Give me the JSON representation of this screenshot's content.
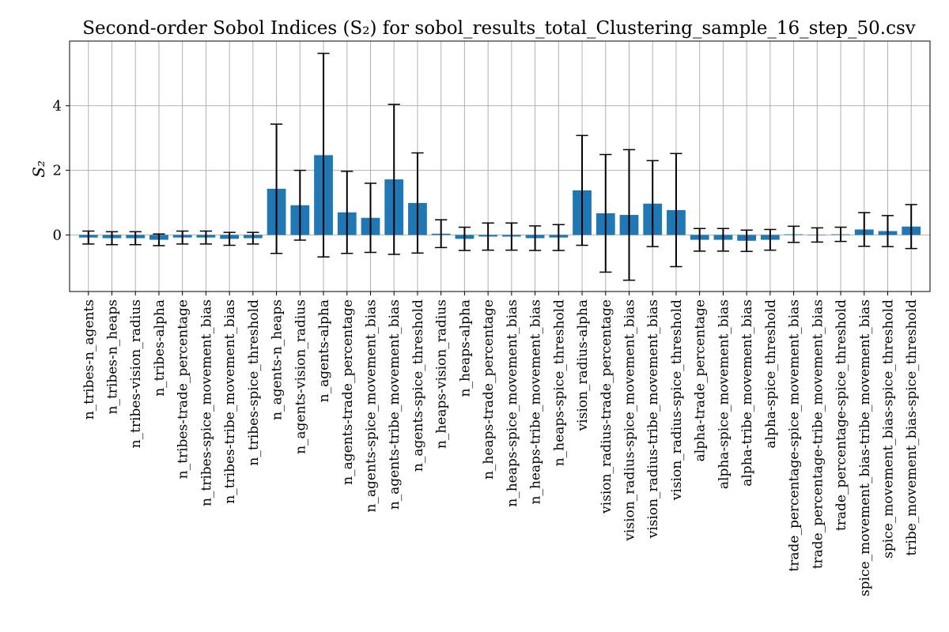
{
  "chart_data": {
    "type": "bar",
    "title": "Second-order Sobol Indices (S₂) for sobol_results_total_Clustering_sample_16_step_50.csv",
    "xlabel": "",
    "ylabel": "S₂",
    "ylim": [
      -1.75,
      6.0
    ],
    "yticks": [
      0,
      2,
      4
    ],
    "grid": true,
    "bar_color": "#1f77b4",
    "error_color": "#000000",
    "categories": [
      "n_tribes-n_agents",
      "n_tribes-n_heaps",
      "n_tribes-vision_radius",
      "n_tribes-alpha",
      "n_tribes-trade_percentage",
      "n_tribes-spice_movement_bias",
      "n_tribes-tribe_movement_bias",
      "n_tribes-spice_threshold",
      "n_agents-n_heaps",
      "n_agents-vision_radius",
      "n_agents-alpha",
      "n_agents-trade_percentage",
      "n_agents-spice_movement_bias",
      "n_agents-tribe_movement_bias",
      "n_agents-spice_threshold",
      "n_heaps-vision_radius",
      "n_heaps-alpha",
      "n_heaps-trade_percentage",
      "n_heaps-spice_movement_bias",
      "n_heaps-tribe_movement_bias",
      "n_heaps-spice_threshold",
      "vision_radius-alpha",
      "vision_radius-trade_percentage",
      "vision_radius-spice_movement_bias",
      "vision_radius-tribe_movement_bias",
      "vision_radius-spice_threshold",
      "alpha-trade_percentage",
      "alpha-spice_movement_bias",
      "alpha-tribe_movement_bias",
      "alpha-spice_threshold",
      "trade_percentage-spice_movement_bias",
      "trade_percentage-tribe_movement_bias",
      "trade_percentage-spice_threshold",
      "spice_movement_bias-tribe_movement_bias",
      "spice_movement_bias-spice_threshold",
      "tribe_movement_bias-spice_threshold"
    ],
    "values": [
      -0.08,
      -0.1,
      -0.1,
      -0.15,
      -0.08,
      -0.08,
      -0.12,
      -0.1,
      1.43,
      0.92,
      2.47,
      0.7,
      0.53,
      1.72,
      0.99,
      0.04,
      -0.12,
      -0.05,
      -0.05,
      -0.1,
      -0.08,
      1.38,
      0.67,
      0.62,
      0.97,
      0.77,
      -0.15,
      -0.15,
      -0.18,
      -0.15,
      0.02,
      0.0,
      0.02,
      0.17,
      0.12,
      0.26
    ],
    "errors": [
      0.2,
      0.2,
      0.2,
      0.18,
      0.2,
      0.2,
      0.2,
      0.18,
      2.0,
      1.08,
      3.15,
      1.27,
      1.07,
      2.32,
      1.55,
      0.43,
      0.36,
      0.42,
      0.42,
      0.38,
      0.4,
      1.7,
      1.82,
      2.02,
      1.33,
      1.75,
      0.35,
      0.35,
      0.33,
      0.32,
      0.25,
      0.22,
      0.22,
      0.52,
      0.48,
      0.68
    ]
  }
}
